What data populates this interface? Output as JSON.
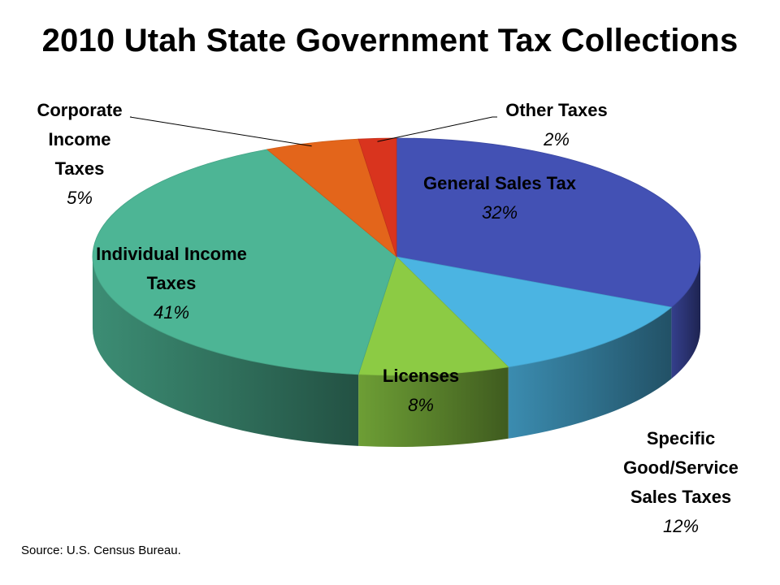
{
  "chart_data": {
    "type": "pie",
    "title": "2010 Utah State Government Tax Collections",
    "slices": [
      {
        "name": "General Sales Tax",
        "percent_label": "32%",
        "value": 32,
        "color": "#4351B4"
      },
      {
        "name": "Specific Good/Service Sales Taxes",
        "percent_label": "12%",
        "value": 12,
        "color": "#4BB4E2"
      },
      {
        "name": "Licenses",
        "percent_label": "8%",
        "value": 8,
        "color": "#8CCB44"
      },
      {
        "name": "Individual Income Taxes",
        "percent_label": "41%",
        "value": 41,
        "color": "#4DB595"
      },
      {
        "name": "Corporate Income Taxes",
        "percent_label": "5%",
        "value": 5,
        "color": "#E3651B"
      },
      {
        "name": "Other Taxes",
        "percent_label": "2%",
        "value": 2,
        "color": "#D9341E"
      }
    ],
    "legend": "none",
    "source": "Source: U.S. Census Bureau."
  }
}
